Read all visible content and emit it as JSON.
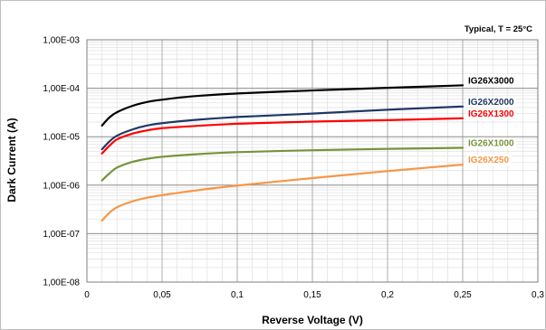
{
  "chart_data": {
    "type": "line",
    "title": "",
    "annotation": "Typical, T = 25°C",
    "xlabel": "Reverse Voltage (V)",
    "ylabel": "Dark Current (A)",
    "xlim": [
      0,
      0.3
    ],
    "ylim": [
      1e-08,
      0.001
    ],
    "yscale": "log",
    "grid": true,
    "x_ticks": [
      0,
      0.05,
      0.1,
      0.15,
      0.2,
      0.25,
      0.3
    ],
    "x_tick_labels": [
      "0",
      "0,05",
      "0,1",
      "0,15",
      "0,2",
      "0,25",
      "0,3"
    ],
    "y_ticks": [
      0.001,
      0.0001,
      1e-05,
      1e-06,
      1e-07,
      1e-08
    ],
    "y_tick_labels": [
      "1,00E-03",
      "1,00E-04",
      "1,00E-05",
      "1,00E-06",
      "1,00E-07",
      "1,00E-08"
    ],
    "series": [
      {
        "name": "IG26X3000",
        "color": "#000000",
        "x": [
          0.01,
          0.015,
          0.02,
          0.03,
          0.04,
          0.05,
          0.07,
          0.1,
          0.15,
          0.2,
          0.25
        ],
        "y": [
          1.7e-05,
          2.5e-05,
          3.2e-05,
          4.3e-05,
          5.2e-05,
          5.8e-05,
          6.8e-05,
          7.8e-05,
          9e-05,
          0.000102,
          0.000115
        ]
      },
      {
        "name": "IG26X2000",
        "color": "#1f3864",
        "x": [
          0.01,
          0.015,
          0.02,
          0.03,
          0.04,
          0.05,
          0.07,
          0.1,
          0.15,
          0.2,
          0.25
        ],
        "y": [
          5.5e-06,
          8e-06,
          1.05e-05,
          1.4e-05,
          1.7e-05,
          1.9e-05,
          2.2e-05,
          2.55e-05,
          3e-05,
          3.6e-05,
          4.2e-05
        ]
      },
      {
        "name": "IG26X1300",
        "color": "#ff0000",
        "x": [
          0.01,
          0.015,
          0.02,
          0.03,
          0.04,
          0.05,
          0.07,
          0.1,
          0.15,
          0.2,
          0.25
        ],
        "y": [
          4.5e-06,
          6.5e-06,
          8.8e-06,
          1.15e-05,
          1.35e-05,
          1.5e-05,
          1.65e-05,
          1.85e-05,
          2.05e-05,
          2.2e-05,
          2.4e-05
        ]
      },
      {
        "name": "IG26X1000",
        "color": "#77933c",
        "x": [
          0.01,
          0.015,
          0.02,
          0.03,
          0.04,
          0.05,
          0.07,
          0.1,
          0.15,
          0.2,
          0.25
        ],
        "y": [
          1.25e-06,
          1.75e-06,
          2.3e-06,
          3e-06,
          3.5e-06,
          3.85e-06,
          4.3e-06,
          4.8e-06,
          5.25e-06,
          5.6e-06,
          5.9e-06
        ]
      },
      {
        "name": "IG26X250",
        "color": "#f79646",
        "x": [
          0.01,
          0.015,
          0.02,
          0.03,
          0.04,
          0.05,
          0.07,
          0.1,
          0.15,
          0.2,
          0.25
        ],
        "y": [
          1.85e-07,
          2.7e-07,
          3.5e-07,
          4.6e-07,
          5.5e-07,
          6.2e-07,
          7.6e-07,
          9.8e-07,
          1.4e-06,
          1.95e-06,
          2.65e-06
        ]
      }
    ]
  }
}
